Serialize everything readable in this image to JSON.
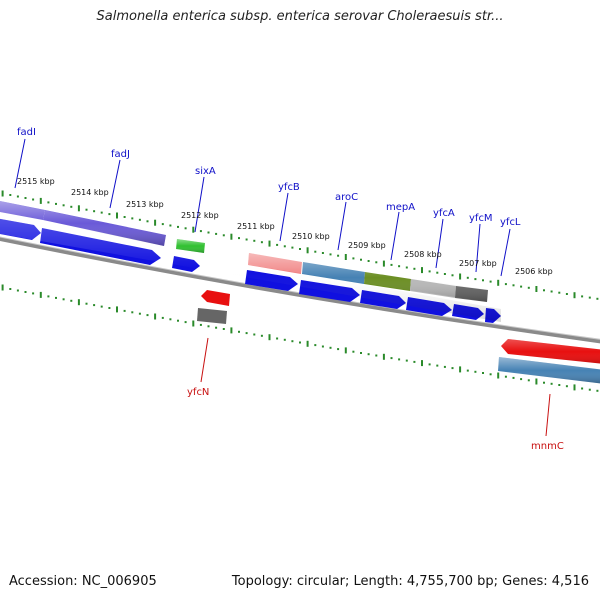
{
  "title": "Salmonella enterica subsp. enterica serovar Choleraesuis str...",
  "footer": {
    "accession": "Accession: NC_006905",
    "topology": "Topology: circular; Length: 4,755,700 bp; Genes: 4,516"
  },
  "colors": {
    "forward_gene": "#1010e0",
    "reverse_gene": "#e81010",
    "cog_purple": "#6a5ad8",
    "cog_green": "#30c030",
    "cog_salmon": "#f08080",
    "cog_steelblue": "#4682b4",
    "cog_olive": "#6b8e23",
    "cog_silver": "#b8b8b8",
    "cog_gray": "#666666",
    "backbone": "#888888",
    "tick": "#2a8a2a",
    "forward_label": "#1010c8",
    "reverse_label": "#c81010"
  },
  "kbp_labels": [
    "2515 kbp",
    "2514 kbp",
    "2513 kbp",
    "2512 kbp",
    "2511 kbp",
    "2510 kbp",
    "2509 kbp",
    "2508 kbp",
    "2507 kbp",
    "2506 kbp"
  ],
  "genes": {
    "forward": [
      "fadI",
      "fadJ",
      "sixA",
      "yfcB",
      "aroC",
      "mepA",
      "yfcA",
      "yfcM",
      "yfcL"
    ],
    "reverse": [
      "yfcN",
      "mnmC"
    ]
  }
}
